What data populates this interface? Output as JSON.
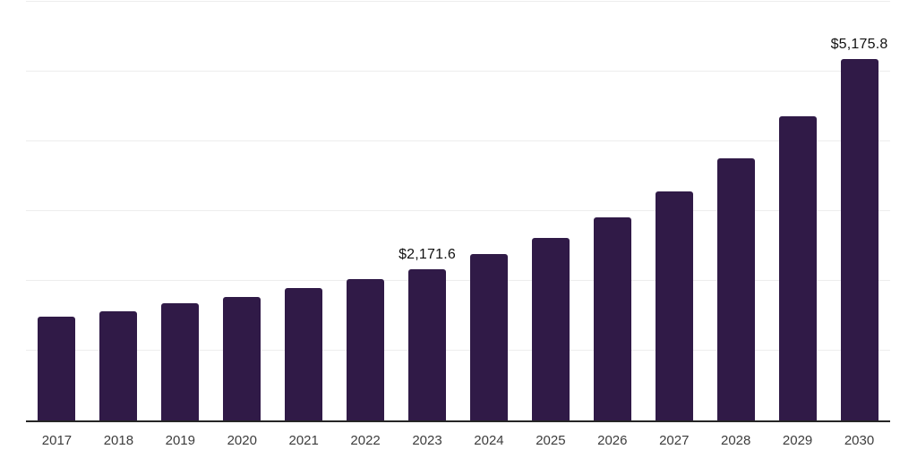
{
  "chart": {
    "background_color": "#ffffff",
    "bar_color": "#301a47",
    "gridline_color": "#ededed",
    "axis_line_color": "#262626",
    "tick_label_color": "#3d3d3d",
    "data_label_color": "#111111"
  },
  "chart_data": {
    "type": "bar",
    "title": "",
    "xlabel": "",
    "ylabel": "",
    "categories": [
      "2017",
      "2018",
      "2019",
      "2020",
      "2021",
      "2022",
      "2023",
      "2024",
      "2025",
      "2026",
      "2027",
      "2028",
      "2029",
      "2030"
    ],
    "values": [
      1490,
      1570,
      1680,
      1775,
      1900,
      2030,
      2171.6,
      2385,
      2610,
      2905,
      3285,
      3755,
      4365,
      5175.8
    ],
    "point_labels": [
      "",
      "",
      "",
      "",
      "",
      "",
      "$2,171.6",
      "",
      "",
      "",
      "",
      "",
      "",
      "$5,175.8"
    ],
    "ylim": [
      0,
      6000
    ],
    "gridline_interval": 1000,
    "grid": "horizontal",
    "legend_position": "none",
    "y_axis_tick_labels_visible": false
  }
}
